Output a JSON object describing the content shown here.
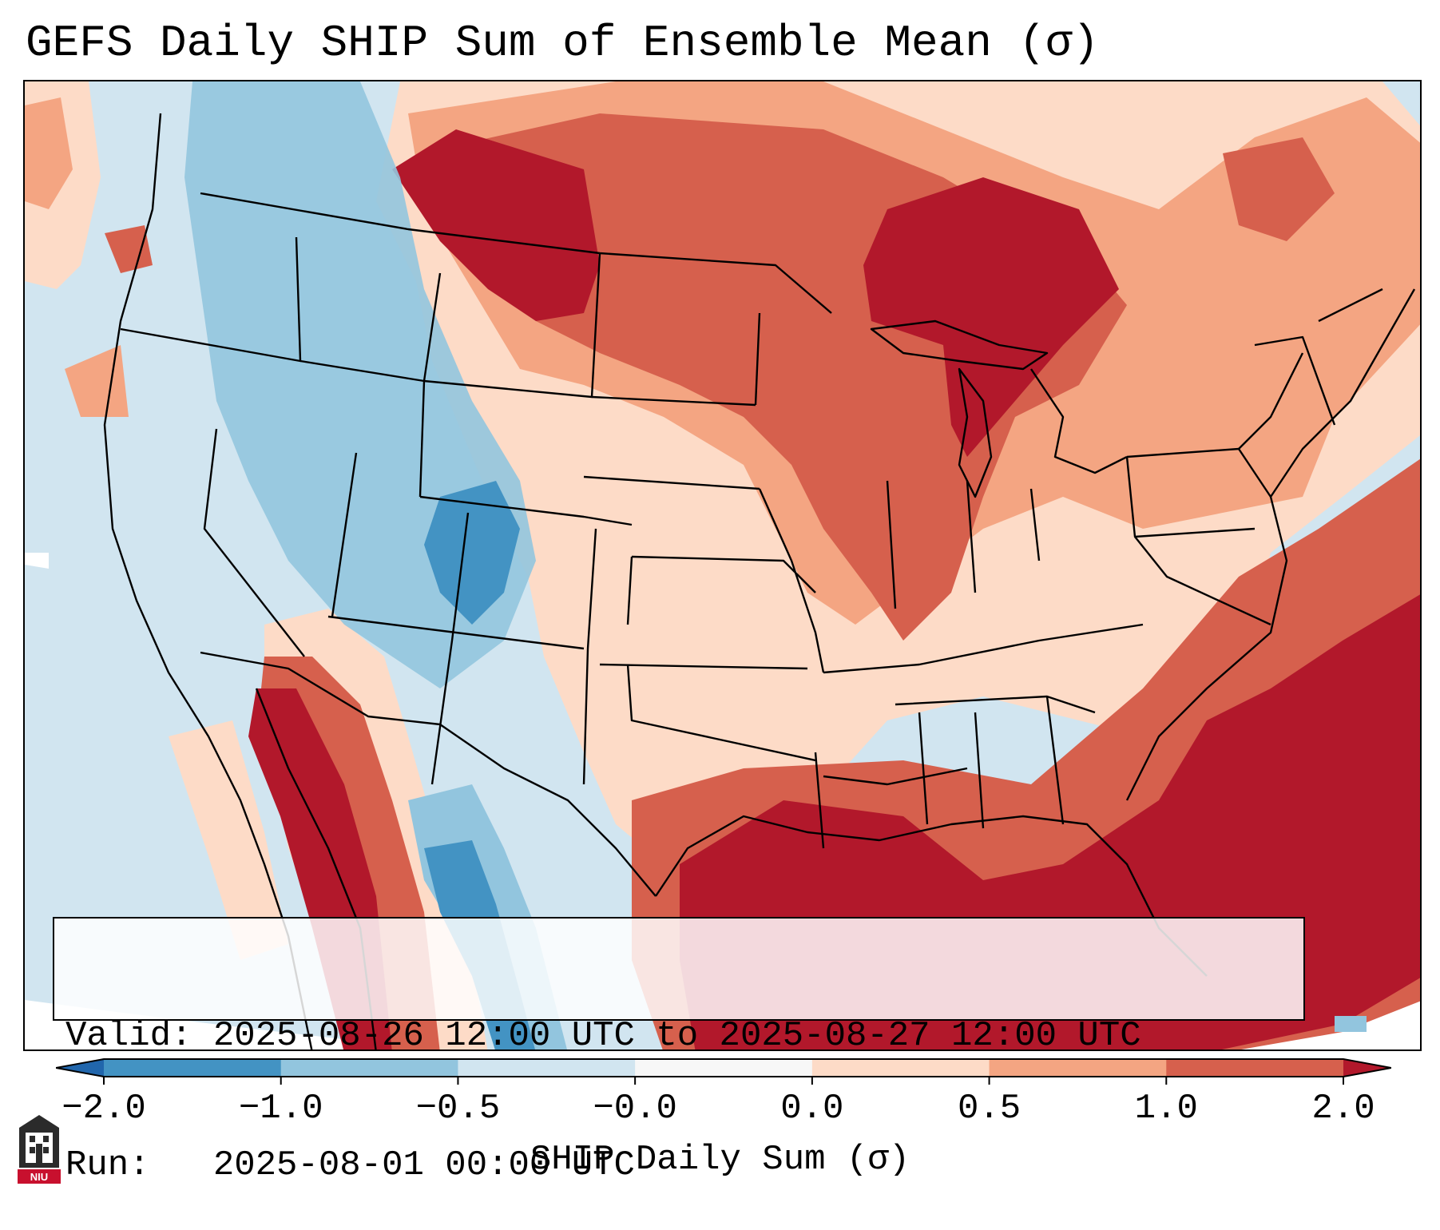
{
  "title": "GEFS Daily SHIP Sum of Ensemble Mean (σ)",
  "info": {
    "valid_label": "Valid:",
    "valid_value": "2025-08-26 12:00 UTC to 2025-08-27 12:00 UTC",
    "run_label": "Run:",
    "run_value": "2025-08-01 00:00 UTC"
  },
  "colorbar": {
    "label": "SHIP Daily Sum (σ)",
    "tick_labels": [
      "−2.0",
      "−1.0",
      "−0.5",
      "−0.0",
      "0.0",
      "0.5",
      "1.0",
      "2.0"
    ],
    "bins": [
      {
        "from": -2.0,
        "to": -1.0,
        "color": "#4393c3"
      },
      {
        "from": -1.0,
        "to": -0.5,
        "color": "#92c5de"
      },
      {
        "from": -0.5,
        "to": -0.0,
        "color": "#d1e5f0"
      },
      {
        "from": -0.0,
        "to": 0.0,
        "color": "#f7f7f7"
      },
      {
        "from": 0.0,
        "to": 0.5,
        "color": "#fddbc7"
      },
      {
        "from": 0.5,
        "to": 1.0,
        "color": "#f4a582"
      },
      {
        "from": 1.0,
        "to": 2.0,
        "color": "#d6604d"
      }
    ],
    "under_color": "#2166ac",
    "over_color": "#b2182b",
    "extend": "both"
  },
  "colors": {
    "ocean_outside": "#ffffff",
    "map_background": "#d1e5f0"
  },
  "logo": {
    "icon": "niu-logo-icon",
    "text": "NIU"
  }
}
